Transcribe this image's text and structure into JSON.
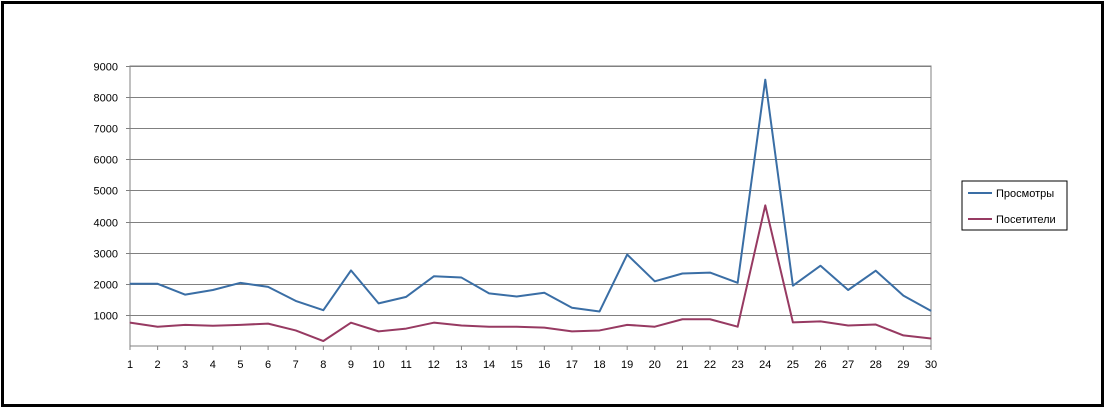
{
  "chart_data": {
    "type": "line",
    "x": [
      1,
      2,
      3,
      4,
      5,
      6,
      7,
      8,
      9,
      10,
      11,
      12,
      13,
      14,
      15,
      16,
      17,
      18,
      19,
      20,
      21,
      22,
      23,
      24,
      25,
      26,
      27,
      28,
      29,
      30
    ],
    "ylim": [
      0,
      9000
    ],
    "yticks": [
      1000,
      2000,
      3000,
      4000,
      5000,
      6000,
      7000,
      8000,
      9000
    ],
    "grid": true,
    "legend_position": "right",
    "series": [
      {
        "name": "Просмотры",
        "color": "#3a6ea5",
        "values": [
          2000,
          2000,
          1650,
          1800,
          2030,
          1900,
          1450,
          1150,
          2430,
          1370,
          1580,
          2240,
          2200,
          1690,
          1590,
          1710,
          1230,
          1110,
          2940,
          2080,
          2330,
          2360,
          2030,
          8560,
          1940,
          2580,
          1800,
          2420,
          1620,
          1130
        ]
      },
      {
        "name": "Посетители",
        "color": "#973a62",
        "values": [
          750,
          620,
          680,
          650,
          680,
          720,
          500,
          160,
          750,
          470,
          560,
          750,
          660,
          620,
          620,
          590,
          470,
          500,
          680,
          620,
          860,
          860,
          620,
          4520,
          760,
          790,
          660,
          690,
          340,
          240
        ]
      }
    ]
  }
}
